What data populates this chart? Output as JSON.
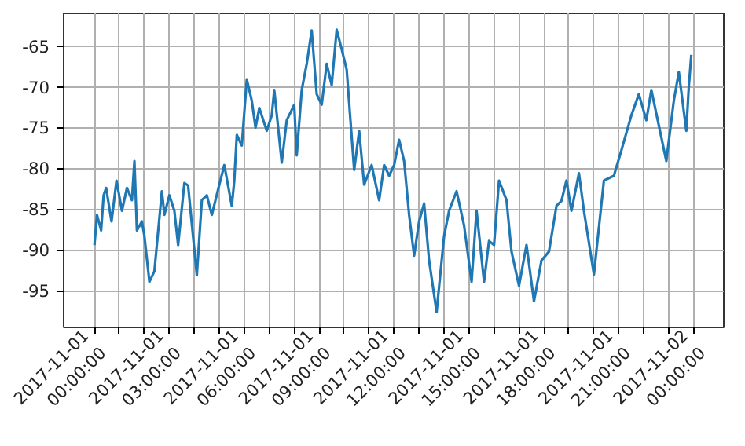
{
  "chart_data": {
    "type": "line",
    "grid": true,
    "marker": "none",
    "line_style": "solid",
    "x": [
      "2017-11-01T00:00",
      "2017-11-01T00:06",
      "2017-11-01T00:16",
      "2017-11-01T00:22",
      "2017-11-01T00:28",
      "2017-11-01T00:41",
      "2017-11-01T00:53",
      "2017-11-01T01:06",
      "2017-11-01T01:18",
      "2017-11-01T01:30",
      "2017-11-01T01:36",
      "2017-11-01T01:42",
      "2017-11-01T01:54",
      "2017-11-01T02:00",
      "2017-11-01T02:12",
      "2017-11-01T02:24",
      "2017-11-01T02:42",
      "2017-11-01T02:48",
      "2017-11-01T03:00",
      "2017-11-01T03:12",
      "2017-11-01T03:21",
      "2017-11-01T03:36",
      "2017-11-01T03:45",
      "2017-11-01T04:06",
      "2017-11-01T04:18",
      "2017-11-01T04:30",
      "2017-11-01T04:42",
      "2017-11-01T05:00",
      "2017-11-01T05:12",
      "2017-11-01T05:30",
      "2017-11-01T05:36",
      "2017-11-01T05:42",
      "2017-11-01T05:54",
      "2017-11-01T06:06",
      "2017-11-01T06:18",
      "2017-11-01T06:27",
      "2017-11-01T06:36",
      "2017-11-01T06:54",
      "2017-11-01T07:06",
      "2017-11-01T07:12",
      "2017-11-01T07:30",
      "2017-11-01T07:42",
      "2017-11-01T08:00",
      "2017-11-01T08:06",
      "2017-11-01T08:18",
      "2017-11-01T08:30",
      "2017-11-01T08:42",
      "2017-11-01T08:54",
      "2017-11-01T09:06",
      "2017-11-01T09:18",
      "2017-11-01T09:30",
      "2017-11-01T09:42",
      "2017-11-01T09:54",
      "2017-11-01T10:06",
      "2017-11-01T10:24",
      "2017-11-01T10:36",
      "2017-11-01T10:48",
      "2017-11-01T11:06",
      "2017-11-01T11:24",
      "2017-11-01T11:36",
      "2017-11-01T11:48",
      "2017-11-01T12:00",
      "2017-11-01T12:12",
      "2017-11-01T12:24",
      "2017-11-01T12:36",
      "2017-11-01T12:48",
      "2017-11-01T13:00",
      "2017-11-01T13:12",
      "2017-11-01T13:24",
      "2017-11-01T13:42",
      "2017-11-01T14:00",
      "2017-11-01T14:12",
      "2017-11-01T14:30",
      "2017-11-01T14:48",
      "2017-11-01T15:06",
      "2017-11-01T15:18",
      "2017-11-01T15:36",
      "2017-11-01T15:48",
      "2017-11-01T16:00",
      "2017-11-01T16:12",
      "2017-11-01T16:30",
      "2017-11-01T16:42",
      "2017-11-01T17:00",
      "2017-11-01T17:18",
      "2017-11-01T17:36",
      "2017-11-01T17:54",
      "2017-11-01T18:12",
      "2017-11-01T18:30",
      "2017-11-01T18:42",
      "2017-11-01T18:54",
      "2017-11-01T19:06",
      "2017-11-01T19:24",
      "2017-11-01T19:36",
      "2017-11-01T20:00",
      "2017-11-01T20:24",
      "2017-11-01T20:48",
      "2017-11-01T21:06",
      "2017-11-01T21:30",
      "2017-11-01T21:48",
      "2017-11-01T22:06",
      "2017-11-01T22:18",
      "2017-11-01T22:54",
      "2017-11-01T23:12",
      "2017-11-01T23:24",
      "2017-11-01T23:42",
      "2017-11-01T23:48",
      "2017-11-01T23:54"
    ],
    "series": [
      {
        "color": "#1f77b4",
        "values": [
          -89.4,
          -85.7,
          -87.6,
          -83.3,
          -82.4,
          -86.5,
          -81.5,
          -85.2,
          -82.4,
          -83.9,
          -79.1,
          -87.6,
          -86.5,
          -88.3,
          -93.9,
          -92.6,
          -82.8,
          -85.7,
          -83.3,
          -85.2,
          -89.4,
          -81.8,
          -82.1,
          -93.1,
          -83.9,
          -83.3,
          -85.7,
          -82.0,
          -79.6,
          -84.6,
          -81.5,
          -75.9,
          -77.2,
          -69.1,
          -71.7,
          -75.0,
          -72.6,
          -75.4,
          -73.5,
          -70.4,
          -79.3,
          -74.1,
          -72.2,
          -78.4,
          -70.4,
          -67.2,
          -63.1,
          -70.9,
          -72.2,
          -67.2,
          -69.8,
          -63.0,
          -65.4,
          -67.9,
          -80.2,
          -75.4,
          -82.0,
          -79.6,
          -83.9,
          -79.6,
          -80.9,
          -79.6,
          -76.5,
          -79.1,
          -85.7,
          -90.7,
          -86.5,
          -84.3,
          -91.3,
          -97.6,
          -88.3,
          -85.2,
          -82.8,
          -87.0,
          -93.9,
          -85.2,
          -93.9,
          -88.9,
          -89.4,
          -81.5,
          -83.9,
          -90.2,
          -94.4,
          -89.4,
          -96.3,
          -91.3,
          -90.2,
          -84.6,
          -84.0,
          -81.5,
          -85.2,
          -80.6,
          -85.2,
          -93.0,
          -81.5,
          -80.9,
          -77.8,
          -73.5,
          -70.9,
          -74.1,
          -70.4,
          -79.1,
          -71.7,
          -68.2,
          -75.4,
          -70.0,
          -66.1
        ]
      }
    ],
    "xlim": [
      "2017-10-31T22:46",
      "2017-11-02T01:12"
    ],
    "xticks": [
      {
        "value": "2017-11-01T00:00",
        "label": "2017-11-01\n00:00:00"
      },
      {
        "value": "2017-11-01T01:00",
        "label": null
      },
      {
        "value": "2017-11-01T02:00",
        "label": null
      },
      {
        "value": "2017-11-01T03:00",
        "label": "2017-11-01\n03:00:00"
      },
      {
        "value": "2017-11-01T04:00",
        "label": null
      },
      {
        "value": "2017-11-01T05:00",
        "label": null
      },
      {
        "value": "2017-11-01T06:00",
        "label": "2017-11-01\n06:00:00"
      },
      {
        "value": "2017-11-01T07:00",
        "label": null
      },
      {
        "value": "2017-11-01T08:00",
        "label": null
      },
      {
        "value": "2017-11-01T09:00",
        "label": "2017-11-01\n09:00:00"
      },
      {
        "value": "2017-11-01T10:00",
        "label": null
      },
      {
        "value": "2017-11-01T11:00",
        "label": null
      },
      {
        "value": "2017-11-01T12:00",
        "label": "2017-11-01\n12:00:00"
      },
      {
        "value": "2017-11-01T13:00",
        "label": null
      },
      {
        "value": "2017-11-01T14:00",
        "label": null
      },
      {
        "value": "2017-11-01T15:00",
        "label": "2017-11-01\n15:00:00"
      },
      {
        "value": "2017-11-01T16:00",
        "label": null
      },
      {
        "value": "2017-11-01T17:00",
        "label": null
      },
      {
        "value": "2017-11-01T18:00",
        "label": "2017-11-01\n18:00:00"
      },
      {
        "value": "2017-11-01T19:00",
        "label": null
      },
      {
        "value": "2017-11-01T20:00",
        "label": null
      },
      {
        "value": "2017-11-01T21:00",
        "label": "2017-11-01\n21:00:00"
      },
      {
        "value": "2017-11-01T22:00",
        "label": null
      },
      {
        "value": "2017-11-01T23:00",
        "label": null
      },
      {
        "value": "2017-11-02T00:00",
        "label": "2017-11-02\n00:00:00"
      }
    ],
    "ylim": [
      -99.5,
      -61
    ],
    "yticks": [
      -95,
      -90,
      -85,
      -80,
      -75,
      -70,
      -65
    ]
  }
}
